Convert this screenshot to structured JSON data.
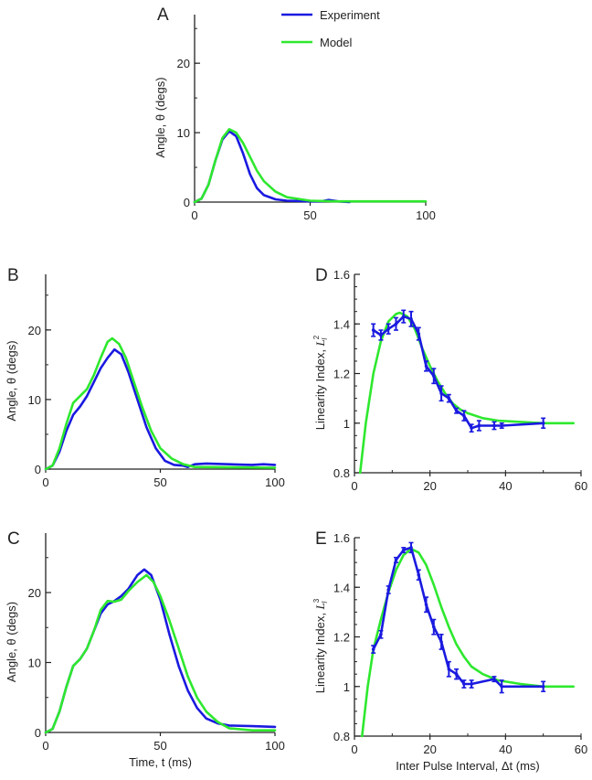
{
  "colors": {
    "experiment": "#1a1ae0",
    "model": "#2ee82e",
    "axis": "#222222"
  },
  "chart_data": [
    {
      "id": "A",
      "panel_label": "A",
      "type": "line",
      "xlabel": "",
      "ylabel": "Angle,  θ (degs)",
      "xlim": [
        0,
        100
      ],
      "ylim": [
        0,
        27
      ],
      "xticks": [
        "0",
        "50",
        "100"
      ],
      "xtick_values": [
        0,
        50,
        100
      ],
      "yticks": [
        "0",
        "10",
        "20"
      ],
      "ytick_values": [
        0,
        10,
        20
      ],
      "legend": {
        "placement": "top-right",
        "entries": [
          "Experiment",
          "Model"
        ]
      },
      "series": [
        {
          "name": "Experiment",
          "x": [
            0,
            3,
            6,
            9,
            12,
            15,
            18,
            21,
            24,
            27,
            30,
            35,
            40,
            50,
            55,
            58,
            62,
            67
          ],
          "y": [
            0,
            0.5,
            2.5,
            6,
            9,
            10.2,
            9.5,
            7,
            4,
            2,
            1,
            0.4,
            0.2,
            0.1,
            0.1,
            0.3,
            0.1,
            0
          ]
        },
        {
          "name": "Model",
          "x": [
            0,
            3,
            6,
            9,
            12,
            15,
            18,
            21,
            24,
            27,
            30,
            35,
            40,
            50,
            60,
            100
          ],
          "y": [
            0,
            0.5,
            2.5,
            6,
            9.2,
            10.5,
            10,
            8.5,
            6.5,
            4.5,
            3,
            1.5,
            0.7,
            0.2,
            0.1,
            0.1
          ]
        }
      ]
    },
    {
      "id": "B",
      "panel_label": "B",
      "type": "line",
      "xlabel": "",
      "ylabel": "Angle,  θ (degs)",
      "xlim": [
        0,
        100
      ],
      "ylim": [
        0,
        28
      ],
      "xticks": [
        "0",
        "50",
        "100"
      ],
      "xtick_values": [
        0,
        50,
        100
      ],
      "yticks": [
        "0",
        "10",
        "20"
      ],
      "ytick_values": [
        0,
        10,
        20
      ],
      "series": [
        {
          "name": "Experiment",
          "x": [
            0,
            3,
            6,
            9,
            12,
            15,
            18,
            21,
            24,
            27,
            30,
            33,
            36,
            40,
            44,
            48,
            52,
            56,
            60,
            62,
            65,
            70,
            80,
            90,
            95,
            100
          ],
          "y": [
            0,
            0.5,
            2.5,
            5.5,
            7.8,
            9,
            10.5,
            12.5,
            14.5,
            16,
            17.2,
            16.5,
            14,
            10,
            6,
            3,
            1.2,
            0.6,
            0.5,
            0.3,
            0.7,
            0.8,
            0.7,
            0.6,
            0.7,
            0.6
          ]
        },
        {
          "name": "Model",
          "x": [
            0,
            3,
            6,
            9,
            12,
            15,
            18,
            21,
            24,
            27,
            29,
            32,
            35,
            38,
            42,
            46,
            50,
            55,
            60,
            65,
            100
          ],
          "y": [
            0,
            0.5,
            3,
            6.5,
            9.5,
            10.5,
            11.5,
            13.5,
            16,
            18.3,
            18.8,
            18,
            16,
            13,
            9,
            5.5,
            3,
            1.5,
            0.7,
            0.3,
            0.2
          ]
        }
      ]
    },
    {
      "id": "C",
      "panel_label": "C",
      "type": "line",
      "xlabel": "Time, t (ms)",
      "ylabel": "Angle,  θ (degs)",
      "xlim": [
        0,
        100
      ],
      "ylim": [
        0,
        28.5
      ],
      "xticks": [
        "0",
        "50",
        "100"
      ],
      "xtick_values": [
        0,
        50,
        100
      ],
      "yticks": [
        "0",
        "10",
        "20"
      ],
      "ytick_values": [
        0,
        10,
        20
      ],
      "series": [
        {
          "name": "Experiment",
          "x": [
            0,
            3,
            6,
            9,
            12,
            15,
            18,
            21,
            24,
            27,
            30,
            33,
            36,
            40,
            43,
            46,
            50,
            54,
            58,
            62,
            66,
            70,
            75,
            80,
            90,
            100
          ],
          "y": [
            0,
            0.5,
            3,
            6.5,
            9.5,
            10.5,
            12,
            14.5,
            17,
            18.3,
            18.8,
            19.5,
            20.5,
            22.5,
            23.3,
            22.5,
            19,
            14,
            9.5,
            6,
            3.5,
            2,
            1.3,
            1,
            0.9,
            0.8
          ]
        },
        {
          "name": "Model",
          "x": [
            0,
            3,
            6,
            9,
            12,
            15,
            18,
            21,
            24,
            27,
            30,
            33,
            36,
            40,
            44,
            47,
            50,
            54,
            58,
            62,
            66,
            70,
            75,
            80,
            90,
            100
          ],
          "y": [
            0,
            0.5,
            3,
            6.5,
            9.5,
            10.5,
            12,
            14.5,
            17.5,
            18.8,
            18.7,
            19,
            20.2,
            21.5,
            22.5,
            21.5,
            19.5,
            16,
            12,
            8,
            5,
            3,
            1.5,
            0.6,
            0.3,
            0.3
          ]
        }
      ]
    },
    {
      "id": "D",
      "panel_label": "D",
      "type": "line",
      "xlabel": "",
      "ylabel": "Linearity Index, ",
      "ylabel_symbol": "L",
      "ylabel_sup": "2",
      "ylabel_sub": "I",
      "xlim": [
        0,
        60
      ],
      "ylim": [
        0.8,
        1.6
      ],
      "xticks": [
        "0",
        "20",
        "40",
        "60"
      ],
      "xtick_values": [
        0,
        20,
        40,
        60
      ],
      "yticks": [
        "0.8",
        "1",
        "1.2",
        "1.4",
        "1.6"
      ],
      "ytick_values": [
        0.8,
        1.0,
        1.2,
        1.4,
        1.6
      ],
      "series": [
        {
          "name": "Experiment",
          "x": [
            5,
            7,
            9,
            11,
            13,
            15,
            17,
            19,
            21,
            23,
            25,
            27,
            29,
            31,
            33,
            37,
            39,
            50
          ],
          "y": [
            1.375,
            1.355,
            1.38,
            1.4,
            1.43,
            1.42,
            1.36,
            1.23,
            1.19,
            1.12,
            1.1,
            1.05,
            1.03,
            0.98,
            0.99,
            0.99,
            0.99,
            1.0
          ],
          "err": [
            0.025,
            0.02,
            0.02,
            0.025,
            0.025,
            0.03,
            0.025,
            0.02,
            0.03,
            0.03,
            0.015,
            0.01,
            0.02,
            0.015,
            0.02,
            0.015,
            0.01,
            0.02
          ]
        },
        {
          "name": "Model",
          "x": [
            1.5,
            3,
            5,
            7,
            9,
            11,
            12,
            14,
            16,
            18,
            20,
            22,
            24,
            26,
            28,
            30,
            34,
            38,
            44,
            50,
            58
          ],
          "y": [
            0.8,
            1.0,
            1.2,
            1.33,
            1.41,
            1.44,
            1.445,
            1.43,
            1.38,
            1.3,
            1.23,
            1.17,
            1.12,
            1.08,
            1.055,
            1.04,
            1.02,
            1.01,
            1.005,
            1.0,
            1.0
          ]
        }
      ]
    },
    {
      "id": "E",
      "panel_label": "E",
      "type": "line",
      "xlabel": "Inter Pulse Interval, Δt (ms)",
      "ylabel": "Linearity Index, ",
      "ylabel_symbol": "L",
      "ylabel_sup": "3",
      "ylabel_sub": "I",
      "xlim": [
        0,
        60
      ],
      "ylim": [
        0.8,
        1.6
      ],
      "xticks": [
        "0",
        "20",
        "40",
        "60"
      ],
      "xtick_values": [
        0,
        20,
        40,
        60
      ],
      "yticks": [
        "0.8",
        "1",
        "1.2",
        "1.4",
        "1.6"
      ],
      "ytick_values": [
        0.8,
        1.0,
        1.2,
        1.4,
        1.6
      ],
      "series": [
        {
          "name": "Experiment",
          "x": [
            5,
            7,
            9,
            11,
            13,
            15,
            17,
            19,
            21,
            23,
            25,
            27,
            29,
            31,
            37,
            39,
            50
          ],
          "y": [
            1.15,
            1.21,
            1.39,
            1.51,
            1.55,
            1.56,
            1.45,
            1.33,
            1.24,
            1.18,
            1.07,
            1.05,
            1.01,
            1.01,
            1.03,
            1.0,
            1.0
          ],
          "err": [
            0.015,
            0.015,
            0.015,
            0.01,
            0.01,
            0.02,
            0.02,
            0.03,
            0.03,
            0.03,
            0.03,
            0.02,
            0.015,
            0.015,
            0.01,
            0.025,
            0.02
          ]
        },
        {
          "name": "Model",
          "x": [
            2,
            3.5,
            5,
            7,
            9,
            11,
            13,
            15,
            17,
            19,
            21,
            23,
            25,
            27,
            29,
            31,
            34,
            38,
            44,
            50,
            58
          ],
          "y": [
            0.8,
            1.0,
            1.15,
            1.27,
            1.38,
            1.47,
            1.53,
            1.555,
            1.54,
            1.49,
            1.41,
            1.32,
            1.24,
            1.17,
            1.12,
            1.08,
            1.05,
            1.025,
            1.01,
            1.0,
            1.0
          ]
        }
      ]
    }
  ]
}
